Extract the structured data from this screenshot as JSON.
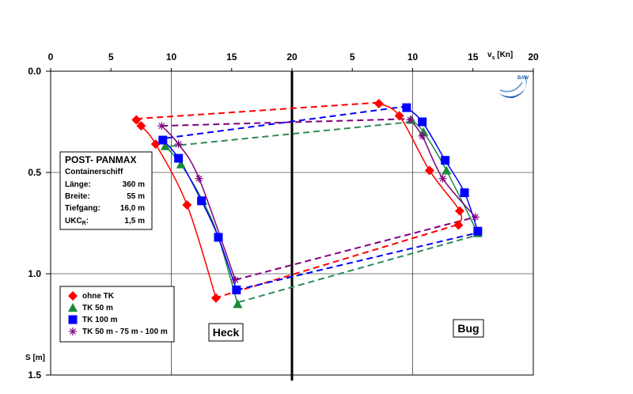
{
  "chart_data": {
    "type": "scatter",
    "x_label_main": "v",
    "x_label_sub": "s",
    "x_label_unit": " [Kn]",
    "y_label": "S [m]",
    "x_ticks_left": [
      "0",
      "5",
      "10",
      "15",
      "20"
    ],
    "x_ticks_right": [
      "5",
      "10",
      "15",
      "20"
    ],
    "y_ticks": [
      "0.0",
      "0.5",
      "1.0",
      "1.5"
    ],
    "ylim": [
      0,
      1.5
    ],
    "xlim_left": [
      0,
      20
    ],
    "xlim_right": [
      0,
      20
    ],
    "grid": true,
    "panel_labels": {
      "left": "Heck",
      "right": "Bug"
    },
    "logo_text": "BAW",
    "info_box": {
      "title": "POST- PANMAX",
      "subtitle": "Containerschiff",
      "rows": [
        {
          "label": "Länge:",
          "value": "360 m",
          "color": "#000000"
        },
        {
          "label": "Breite:",
          "value": "55 m",
          "color": "#000000"
        },
        {
          "label": "Tiefgang:",
          "value": "16,0 m",
          "color": "#000000"
        },
        {
          "label_main": "UKC",
          "label_sub": "R",
          "label_suffix": ":",
          "value": "1,5 m",
          "color": "#ff0000"
        }
      ]
    },
    "series": [
      {
        "name": "ohne TK",
        "color": "#ff0000",
        "marker": "diamond",
        "heck": [
          [
            7.1,
            0.24
          ],
          [
            7.5,
            0.27
          ],
          [
            8.7,
            0.36
          ],
          [
            11.3,
            0.66
          ],
          [
            13.7,
            1.12
          ]
        ],
        "bug": [
          [
            7.2,
            0.16
          ],
          [
            8.9,
            0.22
          ],
          [
            11.4,
            0.49
          ],
          [
            13.9,
            0.69
          ],
          [
            13.8,
            0.76
          ]
        ]
      },
      {
        "name": "TK 50 m",
        "color": "#1a8a3a",
        "marker": "triangle",
        "heck": [
          [
            9.5,
            0.37
          ],
          [
            10.8,
            0.46
          ],
          [
            12.6,
            0.64
          ],
          [
            13.9,
            0.82
          ],
          [
            15.5,
            1.15
          ]
        ],
        "bug": [
          [
            9.9,
            0.24
          ],
          [
            10.9,
            0.3
          ],
          [
            12.8,
            0.49
          ],
          [
            15.4,
            0.8
          ]
        ]
      },
      {
        "name": "TK 100 m",
        "color": "#0000ff",
        "marker": "square",
        "heck": [
          [
            9.3,
            0.34
          ],
          [
            10.6,
            0.43
          ],
          [
            12.5,
            0.64
          ],
          [
            13.9,
            0.82
          ],
          [
            15.4,
            1.08
          ]
        ],
        "bug": [
          [
            9.5,
            0.18
          ],
          [
            10.8,
            0.25
          ],
          [
            12.7,
            0.44
          ],
          [
            14.3,
            0.6
          ],
          [
            15.4,
            0.79
          ]
        ]
      },
      {
        "name": "TK 50 m - 75 m - 100 m",
        "color": "#800080",
        "marker": "star",
        "heck": [
          [
            9.2,
            0.27
          ],
          [
            10.6,
            0.36
          ],
          [
            12.3,
            0.53
          ],
          [
            15.3,
            1.03
          ]
        ],
        "bug": [
          [
            9.8,
            0.24
          ],
          [
            10.8,
            0.32
          ],
          [
            12.5,
            0.53
          ],
          [
            15.2,
            0.72
          ]
        ]
      }
    ],
    "dashed_connectors": [
      {
        "series": "ohne TK",
        "color": "#ff0000",
        "top_heck": [
          7.1,
          0.235
        ],
        "top_bug": [
          7.1,
          0.155
        ],
        "bot_heck": [
          13.6,
          1.12
        ],
        "bot_bug": [
          13.6,
          0.76
        ]
      },
      {
        "series": "TK 100 m",
        "color": "#0000ff",
        "top_heck": [
          9.6,
          0.33
        ],
        "top_bug": [
          9.3,
          0.175
        ],
        "bot_heck": [
          15.4,
          1.08
        ],
        "bot_bug": [
          15.2,
          0.8
        ]
      },
      {
        "series": "TK 50 m - 75 m - 100 m",
        "color": "#800080",
        "top_heck": [
          9.2,
          0.27
        ],
        "top_bug": [
          9.8,
          0.235
        ],
        "bot_heck": [
          15.3,
          1.03
        ],
        "bot_bug": [
          15.2,
          0.72
        ]
      },
      {
        "series": "TK 50 m",
        "color": "#2e8b57",
        "top_heck": [
          9.9,
          0.37
        ],
        "top_bug": [
          9.9,
          0.25
        ],
        "bot_heck": [
          15.6,
          1.14
        ],
        "bot_bug": [
          15.3,
          0.81
        ]
      }
    ]
  }
}
